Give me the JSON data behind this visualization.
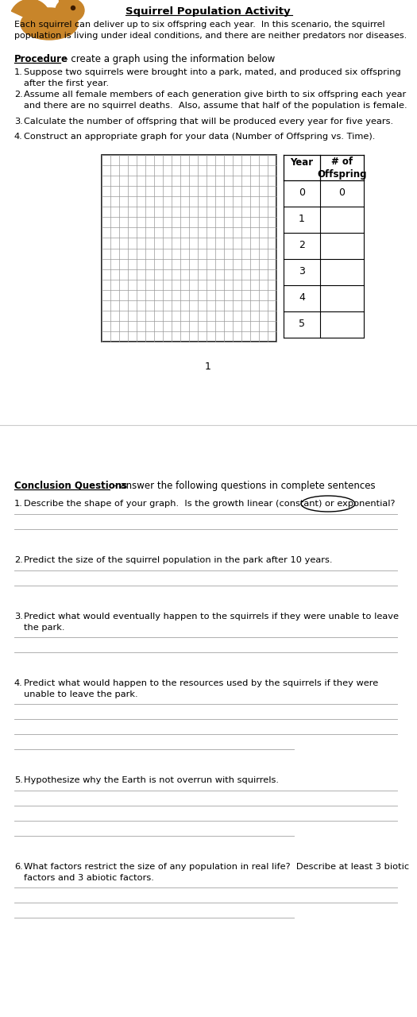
{
  "title": "Squirrel Population Activity",
  "intro_text": "Each squirrel can deliver up to six offspring each year.  In this scenario, the squirrel\npopulation is living under ideal conditions, and there are neither predators nor diseases.",
  "procedure_label": "Procedure",
  "procedure_dash": " – create a graph using the information below",
  "steps": [
    "Suppose two squirrels were brought into a park, mated, and produced six offspring\nafter the first year.",
    "Assume all female members of each generation give birth to six offspring each year\nand there are no squirrel deaths.  Also, assume that half of the population is female.",
    "Calculate the number of offspring that will be produced every year for five years.",
    "Construct an appropriate graph for your data (Number of Offspring vs. Time)."
  ],
  "table_years": [
    0,
    1,
    2,
    3,
    4,
    5
  ],
  "table_offspring": [
    "0",
    "",
    "",
    "",
    "",
    ""
  ],
  "table_header_year": "Year",
  "table_header_offspring": "# of\nOffspring",
  "page_number": "1",
  "conclusion_label": "Conclusion Questions",
  "conclusion_dash": " – answer the following questions in complete sentences",
  "conclusion_questions": [
    "Describe the shape of your graph.  Is the growth linear (constant) or exponential?",
    "Predict the size of the squirrel population in the park after 10 years.",
    "Predict what would eventually happen to the squirrels if they were unable to leave\nthe park.",
    "Predict what would happen to the resources used by the squirrels if they were\nunable to leave the park.",
    "Hypothesize why the Earth is not overrun with squirrels.",
    "What factors restrict the size of any population in real life?  Describe at least 3 biotic\nfactors and 3 abiotic factors."
  ],
  "answer_lines_per_question": [
    2,
    2,
    2,
    4,
    4,
    3
  ],
  "bg_color": "#ffffff",
  "text_color": "#000000",
  "grid_color": "#999999",
  "line_color": "#aaaaaa",
  "sq_color": "#c8852a",
  "sq_dark": "#3a1a00"
}
